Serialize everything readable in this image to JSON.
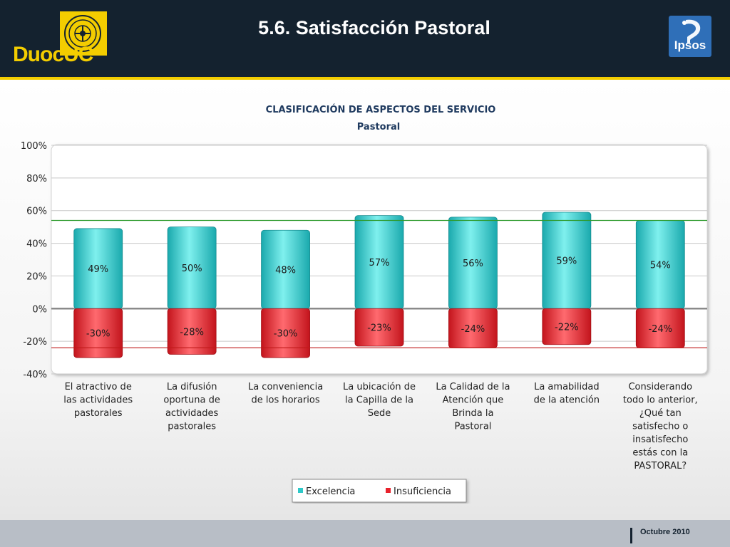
{
  "header": {
    "title": "5.6. Satisfacción Pastoral",
    "left_logo_text": "DuocUC",
    "right_logo_text": "Ipsos"
  },
  "footer": {
    "date": "Octubre 2010"
  },
  "colors": {
    "header_bg": "#14222f",
    "accent_yellow": "#f3cd00",
    "excelencia": "#2ec9c9",
    "insuficiencia": "#e8212b",
    "reference_green": "#2e9b2e",
    "reference_red": "#c01818"
  },
  "chart_data": {
    "type": "bar",
    "title": "CLASIFICACIÓN DE ASPECTOS DEL SERVICIO",
    "subtitle": "Pastoral",
    "ylim": [
      -40,
      100
    ],
    "yticks": [
      -40,
      -20,
      0,
      20,
      40,
      60,
      80,
      100
    ],
    "ytick_labels": [
      "-40%",
      "-20%",
      "0%",
      "20%",
      "40%",
      "60%",
      "80%",
      "100%"
    ],
    "grid": true,
    "legend_position": "bottom",
    "categories": [
      [
        "El atractivo de",
        "las actividades",
        "pastorales"
      ],
      [
        "La difusión",
        "oportuna de",
        "actividades",
        "pastorales"
      ],
      [
        "La conveniencia",
        "de los horarios"
      ],
      [
        "La ubicación de",
        "la Capilla de la",
        "Sede"
      ],
      [
        "La Calidad de la",
        "Atención que",
        "Brinda la",
        "Pastoral"
      ],
      [
        "La amabilidad",
        "de la atención"
      ],
      [
        "Considerando",
        "todo lo anterior,",
        "¿Qué tan",
        "satisfecho o",
        "insatisfecho",
        "estás con la",
        "PASTORAL?"
      ]
    ],
    "series": [
      {
        "name": "Excelencia",
        "values": [
          49,
          50,
          48,
          57,
          56,
          59,
          54
        ],
        "labels": [
          "49%",
          "50%",
          "48%",
          "57%",
          "56%",
          "59%",
          "54%"
        ]
      },
      {
        "name": "Insuficiencia",
        "values": [
          -30,
          -28,
          -30,
          -23,
          -24,
          -22,
          -24
        ],
        "labels": [
          "-30%",
          "-28%",
          "-30%",
          "-23%",
          "-24%",
          "-22%",
          "-24%"
        ]
      }
    ],
    "reference_lines": [
      54,
      -24
    ]
  }
}
